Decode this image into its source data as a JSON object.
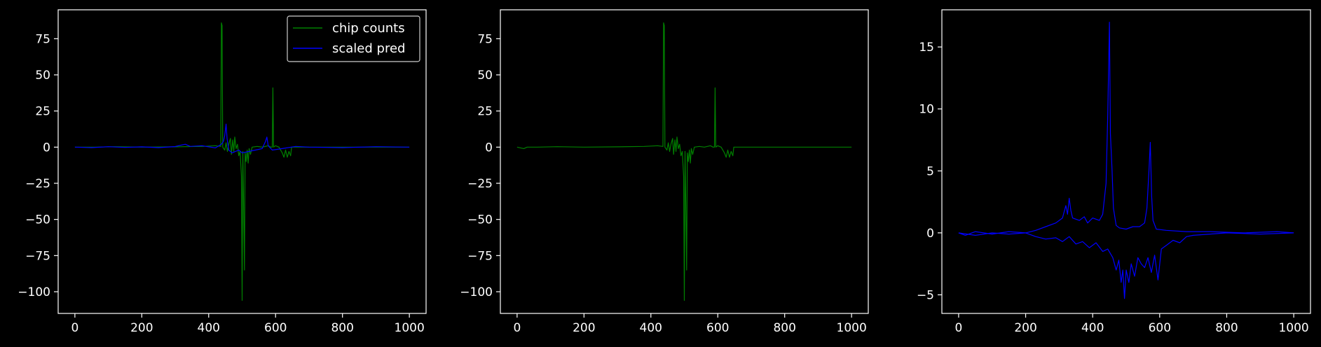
{
  "background_color": "#000000",
  "chart_data": [
    {
      "type": "line",
      "title": "",
      "xlabel": "",
      "ylabel": "",
      "xlim": [
        -50,
        1050
      ],
      "ylim": [
        -115,
        95
      ],
      "xticks": [
        0,
        200,
        400,
        600,
        800,
        1000
      ],
      "yticks": [
        -100,
        -75,
        -50,
        -25,
        0,
        25,
        50,
        75
      ],
      "grid": false,
      "legend": "top-right",
      "series": [
        {
          "name": "chip counts",
          "color": "#008000",
          "points": [
            [
              0,
              0
            ],
            [
              60,
              0
            ],
            [
              120,
              0.3
            ],
            [
              200,
              0
            ],
            [
              300,
              0.2
            ],
            [
              380,
              0.5
            ],
            [
              420,
              1
            ],
            [
              436,
              0.5
            ],
            [
              438,
              86
            ],
            [
              440,
              84
            ],
            [
              442,
              0
            ],
            [
              448,
              -2
            ],
            [
              452,
              3
            ],
            [
              456,
              -3
            ],
            [
              460,
              2
            ],
            [
              465,
              6
            ],
            [
              468,
              -5
            ],
            [
              472,
              5
            ],
            [
              475,
              -3
            ],
            [
              478,
              7
            ],
            [
              482,
              -1
            ],
            [
              486,
              2
            ],
            [
              490,
              -6
            ],
            [
              494,
              -3
            ],
            [
              498,
              -20
            ],
            [
              500,
              -106
            ],
            [
              502,
              -3
            ],
            [
              505,
              -50
            ],
            [
              507,
              -85
            ],
            [
              509,
              -4
            ],
            [
              512,
              -10
            ],
            [
              515,
              -2
            ],
            [
              518,
              -11
            ],
            [
              521,
              -1
            ],
            [
              525,
              -5
            ],
            [
              530,
              0
            ],
            [
              545,
              0.5
            ],
            [
              560,
              0
            ],
            [
              578,
              1
            ],
            [
              586,
              0
            ],
            [
              590,
              0
            ],
            [
              592,
              41
            ],
            [
              594,
              0
            ],
            [
              600,
              1
            ],
            [
              610,
              0
            ],
            [
              620,
              -4
            ],
            [
              625,
              -7
            ],
            [
              630,
              -2
            ],
            [
              635,
              -7
            ],
            [
              640,
              -3
            ],
            [
              645,
              -6
            ],
            [
              648,
              0
            ],
            [
              660,
              0
            ],
            [
              700,
              0
            ],
            [
              800,
              0
            ],
            [
              900,
              0
            ],
            [
              1000,
              0
            ]
          ]
        },
        {
          "name": "scaled pred",
          "color": "#0000ff",
          "points": [
            [
              0,
              0
            ],
            [
              50,
              -0.3
            ],
            [
              100,
              0.3
            ],
            [
              150,
              -0.2
            ],
            [
              200,
              0.2
            ],
            [
              250,
              -0.3
            ],
            [
              300,
              0.4
            ],
            [
              320,
              1.5
            ],
            [
              330,
              2
            ],
            [
              345,
              0.5
            ],
            [
              380,
              1
            ],
            [
              420,
              -0.5
            ],
            [
              438,
              2
            ],
            [
              444,
              4
            ],
            [
              448,
              8
            ],
            [
              452,
              16
            ],
            [
              455,
              6
            ],
            [
              460,
              -2
            ],
            [
              470,
              -4
            ],
            [
              490,
              -2
            ],
            [
              500,
              -4
            ],
            [
              520,
              -3
            ],
            [
              540,
              -2
            ],
            [
              560,
              -1
            ],
            [
              570,
              4
            ],
            [
              574,
              7
            ],
            [
              578,
              1
            ],
            [
              590,
              -2
            ],
            [
              620,
              -1
            ],
            [
              660,
              0.5
            ],
            [
              700,
              0
            ],
            [
              800,
              -0.3
            ],
            [
              900,
              0.3
            ],
            [
              1000,
              0
            ]
          ]
        }
      ]
    },
    {
      "type": "line",
      "title": "",
      "xlabel": "",
      "ylabel": "",
      "xlim": [
        -50,
        1050
      ],
      "ylim": [
        -115,
        95
      ],
      "xticks": [
        0,
        200,
        400,
        600,
        800,
        1000
      ],
      "yticks": [
        -100,
        -75,
        -50,
        -25,
        0,
        25,
        50,
        75
      ],
      "grid": false,
      "series": [
        {
          "color": "#008000",
          "points": [
            [
              0,
              0
            ],
            [
              20,
              -1
            ],
            [
              30,
              0
            ],
            [
              60,
              0
            ],
            [
              120,
              0.3
            ],
            [
              200,
              0
            ],
            [
              300,
              0.2
            ],
            [
              380,
              0.5
            ],
            [
              420,
              1
            ],
            [
              436,
              0.5
            ],
            [
              438,
              86
            ],
            [
              440,
              84
            ],
            [
              442,
              0
            ],
            [
              448,
              -2
            ],
            [
              452,
              3
            ],
            [
              456,
              -3
            ],
            [
              460,
              2
            ],
            [
              465,
              6
            ],
            [
              468,
              -5
            ],
            [
              472,
              5
            ],
            [
              475,
              -3
            ],
            [
              478,
              7
            ],
            [
              482,
              -1
            ],
            [
              486,
              2
            ],
            [
              490,
              -6
            ],
            [
              494,
              -3
            ],
            [
              498,
              -20
            ],
            [
              500,
              -106
            ],
            [
              502,
              -3
            ],
            [
              505,
              -50
            ],
            [
              507,
              -85
            ],
            [
              509,
              -4
            ],
            [
              512,
              -10
            ],
            [
              515,
              -2
            ],
            [
              518,
              -11
            ],
            [
              521,
              -1
            ],
            [
              525,
              -5
            ],
            [
              530,
              0
            ],
            [
              545,
              0.5
            ],
            [
              560,
              0
            ],
            [
              578,
              1
            ],
            [
              586,
              0
            ],
            [
              590,
              0
            ],
            [
              592,
              41
            ],
            [
              594,
              0
            ],
            [
              600,
              1
            ],
            [
              610,
              0
            ],
            [
              620,
              -4
            ],
            [
              625,
              -7
            ],
            [
              630,
              -2
            ],
            [
              635,
              -7
            ],
            [
              640,
              -3
            ],
            [
              645,
              -6
            ],
            [
              648,
              0
            ],
            [
              660,
              0
            ],
            [
              700,
              0
            ],
            [
              800,
              0
            ],
            [
              900,
              0
            ],
            [
              1000,
              0
            ]
          ]
        }
      ]
    },
    {
      "type": "line",
      "title": "",
      "xlabel": "",
      "ylabel": "",
      "xlim": [
        -50,
        1050
      ],
      "ylim": [
        -6.5,
        18
      ],
      "xticks": [
        0,
        200,
        400,
        600,
        800,
        1000
      ],
      "yticks": [
        -5,
        0,
        5,
        10,
        15
      ],
      "grid": false,
      "series": [
        {
          "color": "#0000ff",
          "points": [
            [
              0,
              0
            ],
            [
              20,
              -0.2
            ],
            [
              50,
              0.1
            ],
            [
              100,
              -0.1
            ],
            [
              150,
              0.1
            ],
            [
              200,
              0
            ],
            [
              230,
              0.2
            ],
            [
              260,
              0.5
            ],
            [
              290,
              0.8
            ],
            [
              310,
              1.2
            ],
            [
              320,
              2.2
            ],
            [
              325,
              1.5
            ],
            [
              330,
              2.8
            ],
            [
              335,
              1.8
            ],
            [
              340,
              1.2
            ],
            [
              360,
              1
            ],
            [
              375,
              1.3
            ],
            [
              385,
              0.8
            ],
            [
              400,
              1.2
            ],
            [
              420,
              1
            ],
            [
              430,
              1.5
            ],
            [
              440,
              4
            ],
            [
              445,
              9.5
            ],
            [
              450,
              17
            ],
            [
              453,
              8
            ],
            [
              458,
              5
            ],
            [
              462,
              2
            ],
            [
              470,
              0.6
            ],
            [
              480,
              0.4
            ],
            [
              500,
              0.3
            ],
            [
              520,
              0.5
            ],
            [
              540,
              0.5
            ],
            [
              555,
              0.8
            ],
            [
              562,
              2
            ],
            [
              568,
              5
            ],
            [
              572,
              7.3
            ],
            [
              576,
              3
            ],
            [
              580,
              1
            ],
            [
              590,
              0.3
            ],
            [
              620,
              0.2
            ],
            [
              680,
              0.1
            ],
            [
              750,
              0.1
            ],
            [
              850,
              0
            ],
            [
              950,
              0.1
            ],
            [
              1000,
              0
            ]
          ]
        },
        {
          "color": "#0000ff",
          "points": [
            [
              0,
              0
            ],
            [
              50,
              -0.2
            ],
            [
              100,
              0
            ],
            [
              150,
              -0.1
            ],
            [
              200,
              0
            ],
            [
              230,
              -0.3
            ],
            [
              260,
              -0.5
            ],
            [
              290,
              -0.4
            ],
            [
              310,
              -0.7
            ],
            [
              330,
              -0.3
            ],
            [
              350,
              -0.9
            ],
            [
              370,
              -0.7
            ],
            [
              390,
              -1.2
            ],
            [
              410,
              -0.8
            ],
            [
              430,
              -1.5
            ],
            [
              445,
              -1.3
            ],
            [
              460,
              -2
            ],
            [
              470,
              -3
            ],
            [
              478,
              -2.2
            ],
            [
              485,
              -4
            ],
            [
              490,
              -3
            ],
            [
              495,
              -5.3
            ],
            [
              500,
              -3
            ],
            [
              508,
              -4
            ],
            [
              515,
              -2.5
            ],
            [
              525,
              -3.5
            ],
            [
              535,
              -2
            ],
            [
              545,
              -2.5
            ],
            [
              555,
              -2.8
            ],
            [
              565,
              -2
            ],
            [
              575,
              -3.2
            ],
            [
              585,
              -1.8
            ],
            [
              595,
              -3.8
            ],
            [
              605,
              -1.3
            ],
            [
              620,
              -1
            ],
            [
              640,
              -0.6
            ],
            [
              660,
              -0.8
            ],
            [
              680,
              -0.3
            ],
            [
              700,
              -0.2
            ],
            [
              750,
              -0.1
            ],
            [
              800,
              0
            ],
            [
              900,
              -0.1
            ],
            [
              1000,
              0
            ]
          ]
        }
      ]
    }
  ]
}
